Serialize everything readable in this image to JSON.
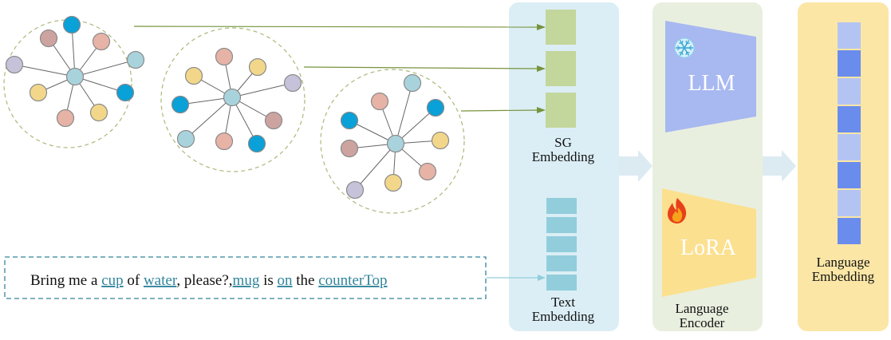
{
  "labels": {
    "sg_embedding_line1": "SG",
    "sg_embedding_line2": "Embedding",
    "text_embedding_line1": "Text",
    "text_embedding_line2": "Embedding",
    "llm": "LLM",
    "lora": "LoRA",
    "language_encoder_line1": "Language",
    "language_encoder_line2": "Encoder",
    "language_embedding_line1": "Language",
    "language_embedding_line2": "Embedding"
  },
  "sentence": [
    {
      "text": "Bring me a ",
      "highlight": false
    },
    {
      "text": "cup",
      "highlight": true
    },
    {
      "text": " of ",
      "highlight": false
    },
    {
      "text": "water",
      "highlight": true
    },
    {
      "text": ", please?,",
      "highlight": false
    },
    {
      "text": "mug",
      "highlight": true
    },
    {
      "text": " is ",
      "highlight": false
    },
    {
      "text": "on",
      "highlight": true
    },
    {
      "text": " the ",
      "highlight": false
    },
    {
      "text": "counterTop",
      "highlight": true
    }
  ],
  "icons": {
    "frozen": "snowflake-icon",
    "trainable": "fire-icon"
  },
  "colors": {
    "sg_panel": "#dbeef5",
    "encoder_panel": "#e9efdf",
    "output_panel": "#fbe6a6",
    "sg_block": "#c3d69b",
    "text_block": "#92cddc",
    "llm_shape": "#a8b8f0",
    "lora_shape": "#fbe08f",
    "token_light": "#b4c4f2",
    "token_dark": "#6a8ced",
    "connector_green": "#77933c",
    "connector_blue": "#92cddc",
    "flow_arrow": "#dcebf1",
    "highlight_text": "#31859c",
    "node_blue": "#0aa0d8",
    "node_lightblue": "#a9d3dc",
    "node_pink": "#e6b3a6",
    "node_rose": "#cda3a0",
    "node_yellow": "#f2d78a",
    "node_lavender": "#c6c2d9"
  }
}
